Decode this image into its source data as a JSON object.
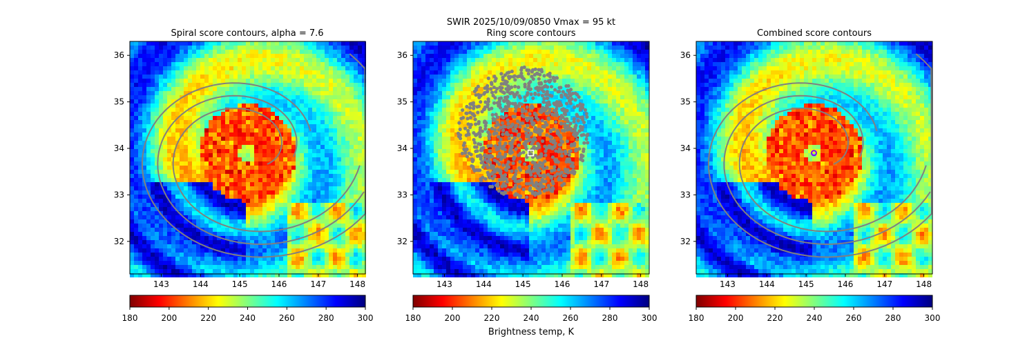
{
  "suptitle_line1": "SWIR  2025/10/09/0850    Vmax = 95 kt",
  "colorbar_label": "Brightness temp, K",
  "colormap": [
    "#7f0000",
    "#ff0000",
    "#ff8000",
    "#ffff00",
    "#80ff80",
    "#00ffff",
    "#0080ff",
    "#0000ff",
    "#00007f"
  ],
  "contour_color": "#808080",
  "chart_data": [
    {
      "type": "heatmap",
      "title": "Spiral score contours, alpha =  7.6",
      "xlim": [
        142.2,
        148.2
      ],
      "ylim": [
        31.3,
        36.3
      ],
      "xticks": [
        143,
        144,
        145,
        146,
        147,
        148
      ],
      "yticks": [
        32,
        33,
        34,
        35,
        36
      ],
      "colorbar": {
        "min": 180,
        "max": 300,
        "ticks": [
          180,
          200,
          220,
          240,
          260,
          280,
          300
        ]
      },
      "eye_center": [
        145.2,
        33.9
      ],
      "overlay": "spiral"
    },
    {
      "type": "heatmap",
      "title": "Ring score contours",
      "xlim": [
        142.2,
        148.2
      ],
      "ylim": [
        31.3,
        36.3
      ],
      "xticks": [
        143,
        144,
        145,
        146,
        147,
        148
      ],
      "yticks": [
        32,
        33,
        34,
        35,
        36
      ],
      "colorbar": {
        "min": 180,
        "max": 300,
        "ticks": [
          180,
          200,
          220,
          240,
          260,
          280,
          300
        ]
      },
      "eye_center": [
        145.2,
        33.9
      ],
      "overlay": "ring",
      "marker": {
        "x": 145.2,
        "y": 33.9,
        "shape": "square"
      }
    },
    {
      "type": "heatmap",
      "title": "Combined score contours",
      "xlim": [
        142.2,
        148.2
      ],
      "ylim": [
        31.3,
        36.3
      ],
      "xticks": [
        143,
        144,
        145,
        146,
        147,
        148
      ],
      "yticks": [
        32,
        33,
        34,
        35,
        36
      ],
      "colorbar": {
        "min": 180,
        "max": 300,
        "ticks": [
          180,
          200,
          220,
          240,
          260,
          280,
          300
        ]
      },
      "eye_center": [
        145.2,
        33.9
      ],
      "overlay": "spiral",
      "marker": {
        "x": 145.2,
        "y": 33.9,
        "shape": "circle"
      }
    }
  ]
}
